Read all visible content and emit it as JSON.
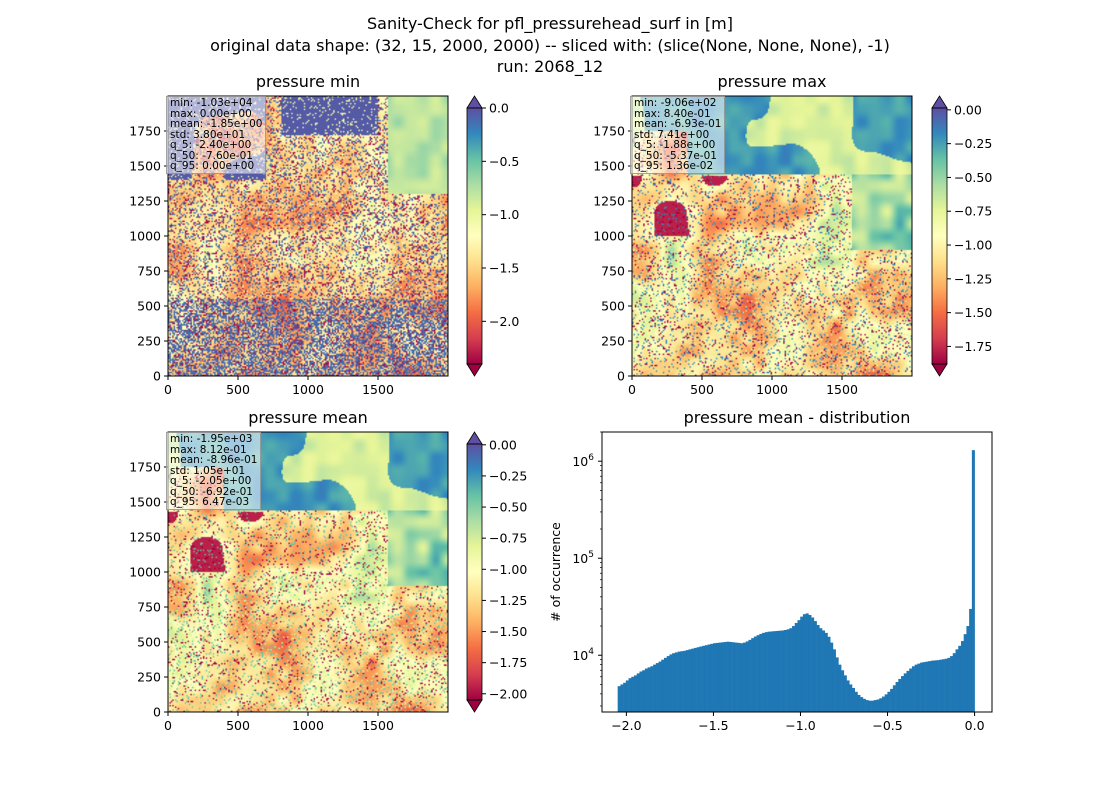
{
  "figure": {
    "title_lines": [
      "Sanity-Check for pfl_pressurehead_surf in [m]",
      "original data shape: (32, 15, 2000, 2000) -- sliced with: (slice(None, None, None), -1)",
      "run: 2068_12"
    ]
  },
  "colors": {
    "histogram_bar": "#1f77b4"
  },
  "chart_data": [
    {
      "type": "heatmap",
      "title": "pressure min",
      "colormap": "Spectral",
      "xlim": [
        0,
        2000
      ],
      "ylim": [
        0,
        2000
      ],
      "xticks": [
        "0",
        "500",
        "1000",
        "1500"
      ],
      "yticks": [
        "0",
        "250",
        "500",
        "750",
        "1000",
        "1250",
        "1500",
        "1750"
      ],
      "colorbar": {
        "range": [
          -2.4,
          0.0
        ],
        "ticks": [
          "0.0",
          "−0.5",
          "−1.0",
          "−1.5",
          "−2.0"
        ],
        "tick_values": [
          0.0,
          -0.5,
          -1.0,
          -1.5,
          -2.0
        ],
        "extend": "both"
      },
      "stats": [
        "min: -1.03e+04",
        "max: 0.00e+00",
        "mean: -1.85e+00",
        "std: 3.80e+01",
        "q_5: -2.40e+00",
        "q_50: -7.60e-01",
        "q_95: 0.00e+00"
      ]
    },
    {
      "type": "heatmap",
      "title": "pressure max",
      "colormap": "Spectral",
      "xlim": [
        0,
        2000
      ],
      "ylim": [
        0,
        2000
      ],
      "xticks": [
        "0",
        "500",
        "1000",
        "1500"
      ],
      "yticks": [
        "0",
        "250",
        "500",
        "750",
        "1000",
        "1250",
        "1500",
        "1750"
      ],
      "colorbar": {
        "range": [
          -1.88,
          0.0136
        ],
        "ticks": [
          "0.00",
          "−0.25",
          "−0.50",
          "−0.75",
          "−1.00",
          "−1.25",
          "−1.50",
          "−1.75"
        ],
        "tick_values": [
          0.0,
          -0.25,
          -0.5,
          -0.75,
          -1.0,
          -1.25,
          -1.5,
          -1.75
        ],
        "extend": "both"
      },
      "stats": [
        "min: -9.06e+02",
        "max: 8.40e-01",
        "mean: -6.93e-01",
        "std: 7.41e+00",
        "q_5: -1.88e+00",
        "q_50: -5.37e-01",
        "q_95: 1.36e-02"
      ]
    },
    {
      "type": "heatmap",
      "title": "pressure mean",
      "colormap": "Spectral",
      "xlim": [
        0,
        2000
      ],
      "ylim": [
        0,
        2000
      ],
      "xticks": [
        "0",
        "500",
        "1000",
        "1500"
      ],
      "yticks": [
        "0",
        "250",
        "500",
        "750",
        "1000",
        "1250",
        "1500",
        "1750"
      ],
      "colorbar": {
        "range": [
          -2.05,
          0.00647
        ],
        "ticks": [
          "0.00",
          "−0.25",
          "−0.50",
          "−0.75",
          "−1.00",
          "−1.25",
          "−1.50",
          "−1.75",
          "−2.00"
        ],
        "tick_values": [
          0.0,
          -0.25,
          -0.5,
          -0.75,
          -1.0,
          -1.25,
          -1.5,
          -1.75,
          -2.0
        ],
        "extend": "both"
      },
      "stats": [
        "min: -1.95e+03",
        "max: 8.12e-01",
        "mean: -8.96e-01",
        "std: 1.05e+01",
        "q_5: -2.05e+00",
        "q_50: -6.92e-01",
        "q_95: 6.47e-03"
      ]
    },
    {
      "type": "bar",
      "title": "pressure mean - distribution",
      "ylabel": "# of occurrence",
      "yscale": "log",
      "xlim": [
        -2.14,
        0.1
      ],
      "ylim": [
        2600,
        2000000
      ],
      "xticks": [
        -2.0,
        -1.5,
        -1.0,
        -0.5,
        0.0
      ],
      "xtick_labels": [
        "−2.0",
        "−1.5",
        "−1.0",
        "−0.5",
        "0.0"
      ],
      "yticks": [
        10000,
        100000,
        1000000
      ],
      "ytick_labels": [
        "10",
        "10",
        "10"
      ],
      "ytick_exponents": [
        "4",
        "5",
        "6"
      ],
      "bin_range": [
        -2.05,
        0.0
      ],
      "bin_counts": [
        4800,
        5000,
        5200,
        5500,
        5800,
        6000,
        6200,
        6500,
        6800,
        7000,
        7300,
        7500,
        7700,
        8000,
        8300,
        8600,
        9000,
        9400,
        9800,
        10200,
        10500,
        10700,
        10900,
        11000,
        11100,
        11300,
        11500,
        11700,
        11900,
        12100,
        12300,
        12500,
        12700,
        12900,
        13100,
        13300,
        13400,
        13500,
        13600,
        13700,
        13800,
        13700,
        13600,
        13500,
        13400,
        13300,
        13500,
        13900,
        14400,
        15000,
        15600,
        16100,
        16600,
        17000,
        17300,
        17500,
        17600,
        17700,
        17800,
        17900,
        18000,
        18200,
        18500,
        19000,
        20000,
        21500,
        23000,
        25000,
        26500,
        27000,
        26000,
        24500,
        22500,
        20500,
        19000,
        18000,
        17000,
        15500,
        13500,
        11500,
        9500,
        8000,
        7000,
        6200,
        5500,
        5000,
        4600,
        4200,
        3900,
        3700,
        3550,
        3450,
        3400,
        3400,
        3450,
        3500,
        3600,
        3750,
        3950,
        4200,
        4500,
        4900,
        5300,
        5700,
        6100,
        6500,
        6900,
        7300,
        7700,
        8000,
        8200,
        8400,
        8500,
        8600,
        8700,
        8800,
        8850,
        8900,
        9000,
        9100,
        9200,
        9400,
        9800,
        10500,
        11500,
        12500,
        14000,
        16500,
        20000,
        30000,
        1300000
      ]
    }
  ]
}
